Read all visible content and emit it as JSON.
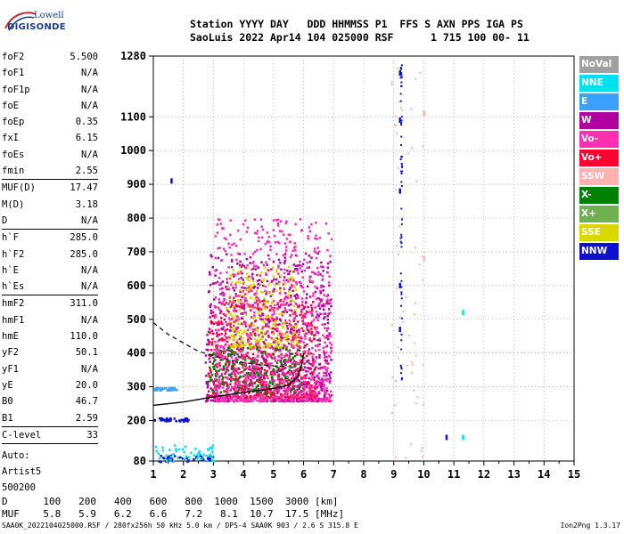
{
  "logo": {
    "line1": "Lowell",
    "line2": "DIGISONDE"
  },
  "header": {
    "line1": "Station YYYY DAY   DDD HHMMSS P1  FFS S AXN PPS IGA PS",
    "line2": "SaoLuis 2022 Apr14 104 025000 RSF      1 715 100 00- 11"
  },
  "params": {
    "group1": [
      {
        "name": "foF2",
        "value": "5.500"
      },
      {
        "name": "foF1",
        "value": "N/A"
      },
      {
        "name": "foF1p",
        "value": "N/A"
      },
      {
        "name": "foE",
        "value": "N/A"
      },
      {
        "name": "foEp",
        "value": "0.35"
      },
      {
        "name": "fxI",
        "value": "6.15"
      },
      {
        "name": "foEs",
        "value": "N/A"
      },
      {
        "name": "fmin",
        "value": "2.55"
      }
    ],
    "group2": [
      {
        "name": "MUF(D)",
        "value": "17.47"
      },
      {
        "name": "M(D)",
        "value": "3.18"
      },
      {
        "name": "D",
        "value": "N/A"
      }
    ],
    "group3": [
      {
        "name": "h`F",
        "value": "285.0"
      },
      {
        "name": "h`F2",
        "value": "285.0"
      },
      {
        "name": "h`E",
        "value": "N/A"
      },
      {
        "name": "h`Es",
        "value": "N/A"
      }
    ],
    "group4": [
      {
        "name": "hmF2",
        "value": "311.0"
      },
      {
        "name": "hmF1",
        "value": "N/A"
      },
      {
        "name": "hmE",
        "value": "110.0"
      },
      {
        "name": "yF2",
        "value": "50.1"
      },
      {
        "name": "yF1",
        "value": "N/A"
      },
      {
        "name": "yE",
        "value": "20.0"
      },
      {
        "name": "B0",
        "value": "46.7"
      },
      {
        "name": "B1",
        "value": "2.59"
      }
    ],
    "group5": [
      {
        "name": "C-level",
        "value": "33"
      }
    ],
    "auto": [
      "Auto:",
      "Artist5",
      "500200"
    ]
  },
  "legend": [
    {
      "label": "NoVal",
      "color": "#a0a0a0"
    },
    {
      "label": "NNE",
      "color": "#00e0f0"
    },
    {
      "label": "E",
      "color": "#3ca0ff"
    },
    {
      "label": "W",
      "color": "#b000a0"
    },
    {
      "label": "Vo-",
      "color": "#ff30b0"
    },
    {
      "label": "Vo+",
      "color": "#ff0030"
    },
    {
      "label": "SSW",
      "color": "#ffb0b0"
    },
    {
      "label": "X-",
      "color": "#008000"
    },
    {
      "label": "X+",
      "color": "#70b050"
    },
    {
      "label": "SSE",
      "color": "#d8d800"
    },
    {
      "label": "NNW",
      "color": "#1010d0"
    }
  ],
  "distance_table": {
    "d_label": "D",
    "muf_label": "MUF",
    "d_values": [
      "100",
      "200",
      "400",
      "600",
      "800",
      "1000",
      "1500",
      "3000"
    ],
    "d_unit": "[km]",
    "muf_values": [
      "5.8",
      "5.9",
      "6.2",
      "6.6",
      "7.2",
      "8.1",
      "10.7",
      "17.5"
    ],
    "muf_unit": "[MHz]"
  },
  "footer": "SAA0K_2022104025000.RSF / 280fx256h 50 kHz 5.0 km / DPS-4 SAA0K 903 / 2.6 S 315.8 E",
  "footer_right": "Ion2Png 1.3.17",
  "chart_data": {
    "type": "scatter",
    "xlabel": "",
    "ylabel": "",
    "xlim": [
      1,
      15
    ],
    "ylim": [
      80,
      1280
    ],
    "xticks": [
      1,
      2,
      3,
      4,
      5,
      6,
      7,
      8,
      9,
      10,
      11,
      12,
      13,
      14,
      15
    ],
    "yticks": [
      80,
      200,
      300,
      400,
      500,
      600,
      700,
      800,
      900,
      1000,
      1100,
      1280
    ],
    "grid": true,
    "trace_solid": [
      [
        1,
        245
      ],
      [
        2,
        255
      ],
      [
        3,
        270
      ],
      [
        4,
        283
      ],
      [
        5,
        295
      ],
      [
        5.5,
        305
      ],
      [
        5.8,
        330
      ],
      [
        5.95,
        370
      ],
      [
        6.0,
        400
      ]
    ],
    "trace_dashed": [
      [
        1,
        490
      ],
      [
        1.5,
        455
      ],
      [
        2,
        430
      ],
      [
        2.5,
        405
      ],
      [
        3,
        392
      ],
      [
        3.5,
        380
      ],
      [
        4,
        372
      ],
      [
        4.5,
        366
      ],
      [
        5,
        362
      ],
      [
        5.5,
        360
      ]
    ],
    "echo_regions": [
      {
        "direction": "W",
        "xmin": 2.7,
        "xmax": 6.9,
        "ymin": 260,
        "ymax": 700
      },
      {
        "direction": "Vo+",
        "xmin": 2.8,
        "xmax": 6.4,
        "ymin": 270,
        "ymax": 560
      },
      {
        "direction": "SSE",
        "xmin": 3.4,
        "xmax": 5.8,
        "ymin": 420,
        "ymax": 660
      },
      {
        "direction": "X-",
        "xmin": 2.8,
        "xmax": 5.9,
        "ymin": 280,
        "ymax": 420
      },
      {
        "direction": "Vo-",
        "xmin": 3.0,
        "xmax": 6.9,
        "ymin": 260,
        "ymax": 800
      },
      {
        "direction": "NNW",
        "xmin": 1.0,
        "xmax": 2.2,
        "ymin": 200,
        "ymax": 210
      },
      {
        "direction": "NNW",
        "xmin": 1.0,
        "xmax": 3.0,
        "ymin": 80,
        "ymax": 100
      },
      {
        "direction": "NNE",
        "xmin": 1.0,
        "xmax": 3.0,
        "ymin": 80,
        "ymax": 130
      },
      {
        "direction": "E",
        "xmin": 1.0,
        "xmax": 1.8,
        "ymin": 292,
        "ymax": 300
      },
      {
        "direction": "SSW",
        "xmin": 8.9,
        "xmax": 10.0,
        "ymin": 80,
        "ymax": 1280
      },
      {
        "direction": "NNW",
        "xmin": 9.2,
        "xmax": 9.25,
        "ymin": 300,
        "ymax": 1260
      }
    ],
    "isolated_points": [
      {
        "x": 1.6,
        "y": 910,
        "direction": "NNW"
      },
      {
        "x": 9.2,
        "y": 1230,
        "direction": "NNW"
      },
      {
        "x": 9.2,
        "y": 1090,
        "direction": "NNW"
      },
      {
        "x": 9.2,
        "y": 880,
        "direction": "NNW"
      },
      {
        "x": 9.2,
        "y": 600,
        "direction": "NNW"
      },
      {
        "x": 9.2,
        "y": 470,
        "direction": "NNW"
      },
      {
        "x": 10.75,
        "y": 150,
        "direction": "NNW"
      },
      {
        "x": 11.3,
        "y": 520,
        "direction": "NNE"
      },
      {
        "x": 11.3,
        "y": 150,
        "direction": "NNE"
      },
      {
        "x": 10.0,
        "y": 1110,
        "direction": "SSW"
      },
      {
        "x": 10.0,
        "y": 680,
        "direction": "SSW"
      }
    ]
  }
}
